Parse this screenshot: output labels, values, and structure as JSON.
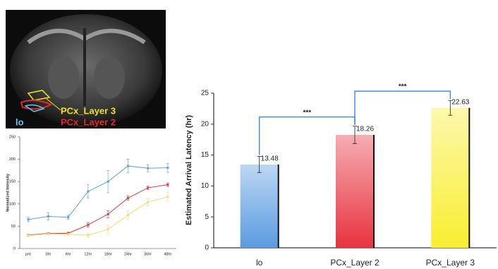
{
  "image_labels": [
    "PCx_Layer 3",
    "PCx_Layer 2",
    "lo"
  ],
  "chart_data": [
    {
      "type": "line",
      "ylabel": "Normalized Intensity",
      "categories": [
        "pre",
        "0hr",
        "6hr",
        "12hr",
        "18hr",
        "24hr",
        "36hr",
        "48hr"
      ],
      "series": [
        {
          "color": "#5ba3e0",
          "values": [
            65,
            72,
            70,
            128,
            150,
            185,
            180,
            181
          ],
          "errors": [
            5,
            8,
            5,
            15,
            25,
            15,
            8,
            10
          ]
        },
        {
          "color": "#e23a3a",
          "values": [
            30,
            34,
            34,
            53,
            77,
            113,
            136,
            143
          ],
          "errors": [
            2,
            2,
            3,
            5,
            8,
            5,
            4,
            4
          ]
        },
        {
          "color": "#f2dc7a",
          "values": [
            29,
            33,
            32,
            30,
            43,
            75,
            104,
            116
          ],
          "errors": [
            2,
            2,
            2,
            5,
            10,
            10,
            8,
            10
          ]
        }
      ],
      "ylim": [
        0,
        250
      ],
      "yticks": [
        0,
        50,
        100,
        150,
        200,
        250
      ]
    },
    {
      "type": "bar",
      "ylabel": "Estimated Arrival Latency (hr)",
      "categories": [
        "lo",
        "PCx_Layer 2",
        "PCx_Layer 3"
      ],
      "values": [
        13.48,
        18.26,
        22.63
      ],
      "errors": [
        1.3,
        1.4,
        1.2
      ],
      "colors": [
        "#5a9be0",
        "#e8323f",
        "#f8ee30"
      ],
      "ylim": [
        0,
        25
      ],
      "yticks": [
        0,
        5,
        10,
        15,
        20,
        25
      ],
      "annotations": [
        {
          "text": "***",
          "from": 0,
          "to": 1
        },
        {
          "text": "***",
          "from": 1,
          "to": 2
        }
      ]
    }
  ]
}
